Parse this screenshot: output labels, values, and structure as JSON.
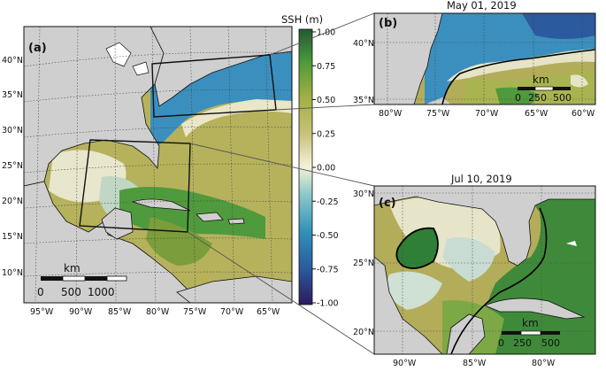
{
  "colorbar": {
    "title": "SSH (m)",
    "ticks": [
      "1.00",
      "0.75",
      "0.50",
      "0.25",
      "0.00",
      "-0.25",
      "-0.50",
      "-0.75",
      "-1.00"
    ],
    "stops": [
      "#2b1a5e",
      "#2c5a9e",
      "#2f8fb8",
      "#7fc1c5",
      "#f4f2d8",
      "#c8c27a",
      "#9fb041",
      "#4e9a3a",
      "#1f5b31"
    ]
  },
  "panel_a": {
    "label": "(a)",
    "lat_labels": [
      "40°N",
      "35°N",
      "30°N",
      "25°N",
      "20°N",
      "15°N",
      "10°N"
    ],
    "lon_labels": [
      "95°W",
      "90°W",
      "85°W",
      "80°W",
      "75°W",
      "70°W",
      "65°W"
    ],
    "scale": {
      "title": "km",
      "ticks": [
        "0",
        "500",
        "1000"
      ]
    }
  },
  "panel_b": {
    "label": "(b)",
    "date": "May 01, 2019",
    "lat_labels": [
      "40°N",
      "35°N"
    ],
    "lon_labels": [
      "80°W",
      "75°W",
      "70°W",
      "65°W",
      "60°W"
    ],
    "scale": {
      "title": "km",
      "ticks": [
        "0",
        "250",
        "500"
      ]
    }
  },
  "panel_c": {
    "label": "(c)",
    "date": "Jul 10, 2019",
    "lat_labels": [
      "30°N",
      "25°N",
      "20°N"
    ],
    "lon_labels": [
      "90°W",
      "85°W",
      "80°W"
    ],
    "scale": {
      "title": "km",
      "ticks": [
        "0",
        "250",
        "500"
      ]
    }
  },
  "colors": {
    "land": "#cfcfcf",
    "ocean_mid": "#b3ad5a",
    "ocean_deep_green": "#4f9a3c",
    "ocean_blue": "#3b8fbe",
    "contour": "#000000"
  }
}
